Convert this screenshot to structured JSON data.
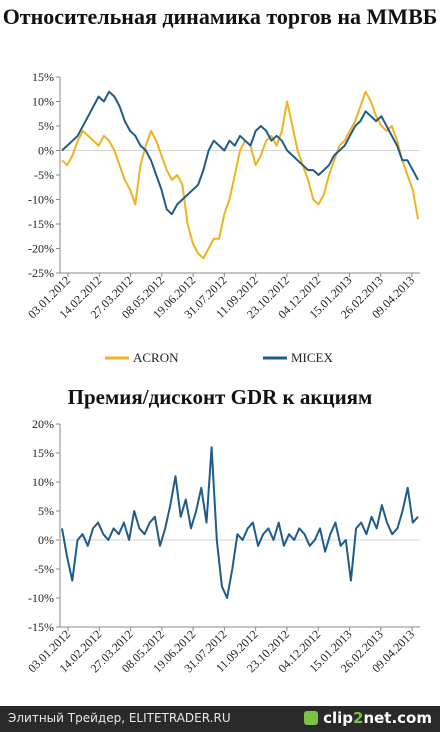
{
  "chart_data": [
    {
      "type": "line",
      "title": "Относительная динамика торгов на ММВБ",
      "xlabel": "",
      "ylabel": "",
      "ylim": [
        -25,
        15
      ],
      "ytick_labels": [
        "15%",
        "10%",
        "5%",
        "0%",
        "-5%",
        "-10%",
        "-15%",
        "-20%",
        "-25%"
      ],
      "xtick_labels": [
        "03.01.2012",
        "14.02.2012",
        "27.03.2012",
        "08.05.2012",
        "19.06.2012",
        "31.07.2012",
        "11.09.2012",
        "23.10.2012",
        "04.12.2012",
        "15.01.2013",
        "26.02.2013",
        "09.04.2013"
      ],
      "grid": false,
      "legend": "bottom",
      "series": [
        {
          "name": "ACRON",
          "color": "#f0b21e",
          "values": [
            -2,
            -3,
            -1,
            2,
            4,
            3,
            2,
            1,
            3,
            2,
            0,
            -3,
            -6,
            -8,
            -11,
            -3,
            1,
            4,
            2,
            -1,
            -4,
            -6,
            -5,
            -7,
            -15,
            -19,
            -21,
            -22,
            -20,
            -18,
            -18,
            -13,
            -10,
            -5,
            0,
            2,
            1,
            -3,
            -1,
            2,
            3,
            1,
            4,
            10,
            5,
            0,
            -3,
            -6,
            -10,
            -11,
            -9,
            -5,
            -2,
            1,
            2,
            4,
            6,
            9,
            12,
            10,
            7,
            5,
            4,
            5,
            2,
            -2,
            -5,
            -8,
            -14
          ]
        },
        {
          "name": "MICEX",
          "color": "#1f5c8a",
          "values": [
            0,
            1,
            2,
            3,
            5,
            7,
            9,
            11,
            10,
            12,
            11,
            9,
            6,
            4,
            3,
            1,
            0,
            -2,
            -5,
            -8,
            -12,
            -13,
            -11,
            -10,
            -9,
            -8,
            -7,
            -4,
            0,
            2,
            1,
            0,
            2,
            1,
            3,
            2,
            1,
            4,
            5,
            4,
            2,
            3,
            2,
            0,
            -1,
            -2,
            -3,
            -4,
            -4,
            -5,
            -4,
            -3,
            -1,
            0,
            1,
            3,
            5,
            6,
            8,
            7,
            6,
            7,
            5,
            3,
            1,
            -2,
            -2,
            -4,
            -6
          ]
        }
      ]
    },
    {
      "type": "line",
      "title": "Премия/дисконт GDR к акциям",
      "xlabel": "",
      "ylabel": "",
      "ylim": [
        -15,
        20
      ],
      "ytick_labels": [
        "20%",
        "15%",
        "10%",
        "5%",
        "0%",
        "-5%",
        "-10%",
        "-15%"
      ],
      "xtick_labels": [
        "03.01.2012",
        "14.02.2012",
        "27.03.2012",
        "08.05.2012",
        "19.06.2012",
        "31.07.2012",
        "11.09.2012",
        "23.10.2012",
        "04.12.2012",
        "15.01.2013",
        "26.02.2013",
        "09.04.2013"
      ],
      "grid": false,
      "legend": "none",
      "series": [
        {
          "color": "#1f5c8a",
          "values": [
            2,
            -3,
            -7,
            0,
            1,
            -1,
            2,
            3,
            1,
            0,
            2,
            1,
            3,
            0,
            5,
            2,
            1,
            3,
            4,
            -1,
            2,
            6,
            11,
            4,
            7,
            2,
            5,
            9,
            3,
            16,
            0,
            -8,
            -10,
            -5,
            1,
            0,
            2,
            3,
            -1,
            1,
            2,
            0,
            3,
            -1,
            1,
            0,
            2,
            1,
            -1,
            0,
            2,
            -2,
            1,
            3,
            -1,
            0,
            -7,
            2,
            3,
            1,
            4,
            2,
            6,
            3,
            1,
            2,
            5,
            9,
            3,
            4
          ]
        }
      ]
    }
  ],
  "footer": {
    "left_text": "Элитный Трейдер, ELITETRADER.RU",
    "brand_a": "clip",
    "brand_b": "2",
    "brand_c": "net",
    "brand_d": ".com"
  }
}
